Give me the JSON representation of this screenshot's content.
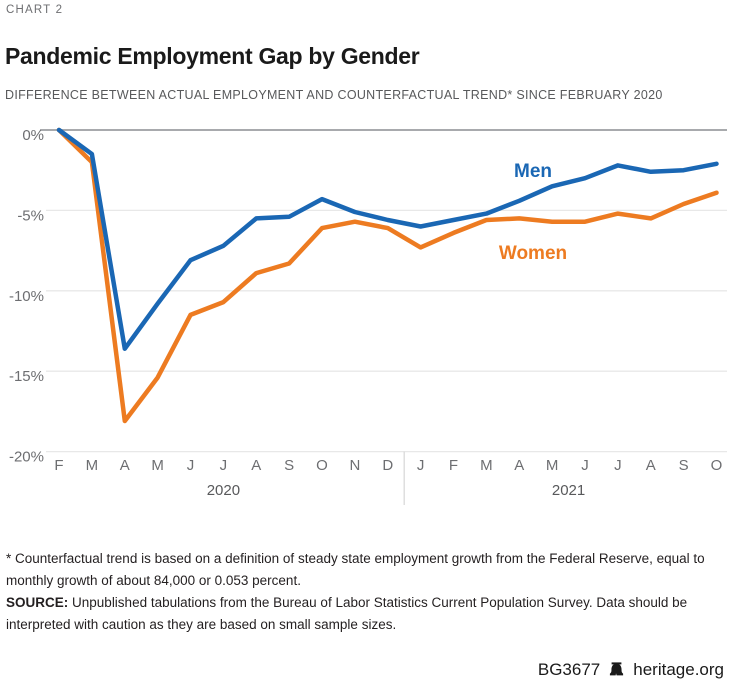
{
  "header": {
    "kicker": "CHART 2",
    "title": "Pandemic Employment Gap by Gender",
    "subtitle": "DIFFERENCE BETWEEN ACTUAL EMPLOYMENT AND COUNTERFACTUAL TREND* SINCE FEBRUARY 2020"
  },
  "chart_data": {
    "type": "line",
    "x": [
      "F",
      "M",
      "A",
      "M",
      "J",
      "J",
      "A",
      "S",
      "O",
      "N",
      "D",
      "J",
      "F",
      "M",
      "A",
      "M",
      "J",
      "J",
      "A",
      "S",
      "O"
    ],
    "year_groups": [
      {
        "label": "2020",
        "start_index": 0,
        "end_index": 10
      },
      {
        "label": "2021",
        "start_index": 11,
        "end_index": 20
      }
    ],
    "series": [
      {
        "name": "Men",
        "color": "#1a67b4",
        "values": [
          0.0,
          -1.5,
          -13.6,
          -10.8,
          -8.1,
          -7.2,
          -5.5,
          -5.4,
          -4.3,
          -5.1,
          -5.6,
          -6.0,
          -5.6,
          -5.2,
          -4.4,
          -3.5,
          -3.0,
          -2.2,
          -2.6,
          -2.5,
          -2.1
        ]
      },
      {
        "name": "Women",
        "color": "#ed7b21",
        "values": [
          0.0,
          -2.0,
          -18.1,
          -15.4,
          -11.5,
          -10.7,
          -8.9,
          -8.3,
          -6.1,
          -5.7,
          -6.1,
          -7.3,
          -6.4,
          -5.6,
          -5.5,
          -5.7,
          -5.7,
          -5.2,
          -5.5,
          -4.6,
          -3.9
        ]
      }
    ],
    "ylim": [
      -20,
      0
    ],
    "yticks": [
      0,
      -5,
      -10,
      -15,
      -20
    ],
    "ytick_labels": [
      "0%",
      "-5%",
      "-10%",
      "-15%",
      "-20%"
    ],
    "grid": true,
    "legend_position": "inline-labels",
    "colors": {
      "zero_gridline": "#a8aaad",
      "gridline": "#e8e8e8",
      "separator": "#d9d9d9",
      "axis_text": "#6d6e71",
      "year_text": "#58595b"
    }
  },
  "footnotes": {
    "asterisk_note": "* Counterfactual trend is based on a definition of steady state employment growth from the Federal Reserve, equal to monthly growth of about 84,000 or 0.053 percent.",
    "source_label": "SOURCE:",
    "source_text": "Unpublished tabulations from the Bureau of Labor Statistics Current Population Survey. Data should be interpreted with caution as they are based on small sample sizes."
  },
  "footer": {
    "report_id": "BG3677",
    "site": "heritage.org",
    "logo": "liberty-bell-icon"
  }
}
